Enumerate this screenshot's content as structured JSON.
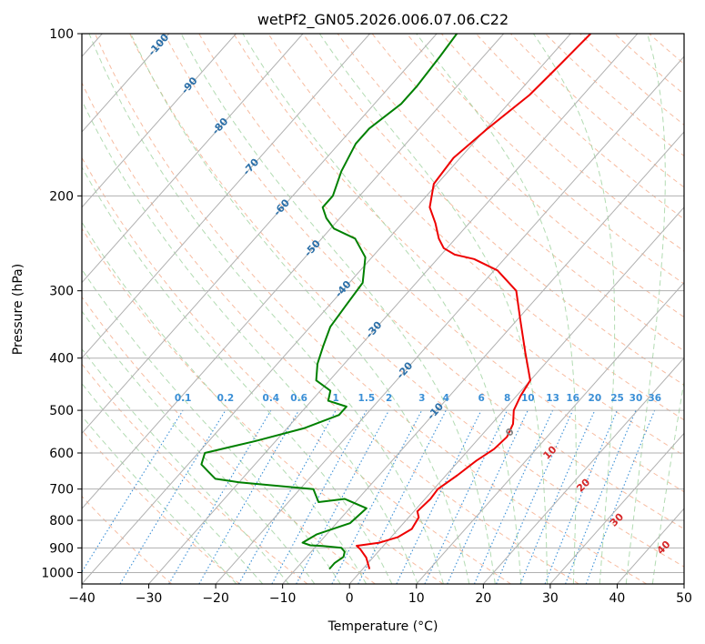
{
  "chart_data": {
    "type": "line",
    "title": "wetPf2_GN05.2026.006.07.06.C22",
    "xlabel": "Temperature (°C)",
    "ylabel": "Pressure (hPa)",
    "xlim": [
      -40,
      50
    ],
    "ylim": [
      1050,
      100
    ],
    "y_scale": "log",
    "x_ticks": [
      -40,
      -30,
      -20,
      -10,
      0,
      10,
      20,
      30,
      40,
      50
    ],
    "y_ticks": [
      100,
      200,
      300,
      400,
      500,
      600,
      700,
      800,
      900,
      1000
    ],
    "grid": true,
    "colors": {
      "temperature": "#ee0000",
      "dewpoint": "#008000",
      "isotherm": "#b0b0b0",
      "dry_adiabat": "#f4a582",
      "moist_adiabat": "#9fd29f",
      "mixing_ratio": "#3a8fd6",
      "isotherm_label": "#2b6fa8",
      "moist_label": "#d62728",
      "zero_label": "#808080"
    },
    "series": [
      {
        "key": "temperature",
        "x": [
          1.0,
          -1.0,
          -3.0,
          -4.0,
          -3.5,
          -1.0,
          1.0,
          2.0,
          1.5,
          0.5,
          0.8,
          0.6,
          1.7,
          2.6,
          3.7,
          4.0,
          3.2,
          1.5,
          0.6,
          0.0,
          -4.5,
          -9.5,
          -14.0,
          -19.5,
          -24.5,
          -28.0,
          -30.5,
          -32.5,
          -35.0,
          -38.0,
          -40.5,
          -41.0,
          -39.8,
          -38.0,
          -37.5,
          -37.0
        ],
        "y": [
          985,
          938,
          905,
          892,
          890,
          880,
          860,
          830,
          790,
          770,
          730,
          700,
          660,
          620,
          590,
          560,
          530,
          500,
          470,
          440,
          390,
          340,
          300,
          275,
          262,
          257,
          250,
          240,
          225,
          210,
          190,
          170,
          150,
          130,
          115,
          100
        ]
      },
      {
        "key": "dewpoint",
        "x": [
          -5.0,
          -5.0,
          -4.5,
          -5.0,
          -6.0,
          -9.0,
          -11.0,
          -12.5,
          -11.5,
          -8.0,
          -7.5,
          -12.0,
          -15.5,
          -18.0,
          -30.0,
          -34.0,
          -36.0,
          -38.0,
          -39.0,
          -33.0,
          -27.5,
          -24.0,
          -24.0,
          -27.5,
          -28.5,
          -32.0,
          -34.0,
          -35.5,
          -37.0,
          -37.5,
          -38.0,
          -41.0,
          -45.0,
          -49.5,
          -52.0,
          -54.0,
          -54.0,
          -56.0,
          -57.5,
          -57.5,
          -56.0,
          -56.0,
          -56.5,
          -57.0
        ],
        "y": [
          985,
          960,
          935,
          915,
          900,
          893,
          890,
          880,
          850,
          810,
          760,
          730,
          740,
          700,
          680,
          670,
          650,
          630,
          600,
          570,
          540,
          510,
          492,
          480,
          460,
          440,
          410,
          380,
          350,
          320,
          290,
          260,
          240,
          230,
          220,
          210,
          200,
          180,
          160,
          150,
          135,
          125,
          110,
          100
        ]
      }
    ],
    "isotherm_labels": [
      "-100",
      "-90",
      "-80",
      "-70",
      "-60",
      "-50",
      "-40",
      "-30",
      "-20",
      "-10"
    ],
    "mixing_ratio_labels": [
      "0.1",
      "0.2",
      "0.4",
      "0.6",
      "1",
      "1.5",
      "2",
      "3",
      "4",
      "6",
      "8",
      "10",
      "13",
      "16",
      "20",
      "25",
      "30",
      "36"
    ],
    "moist_adiabat_labels": [
      "0",
      "10",
      "20",
      "30",
      "40"
    ]
  }
}
